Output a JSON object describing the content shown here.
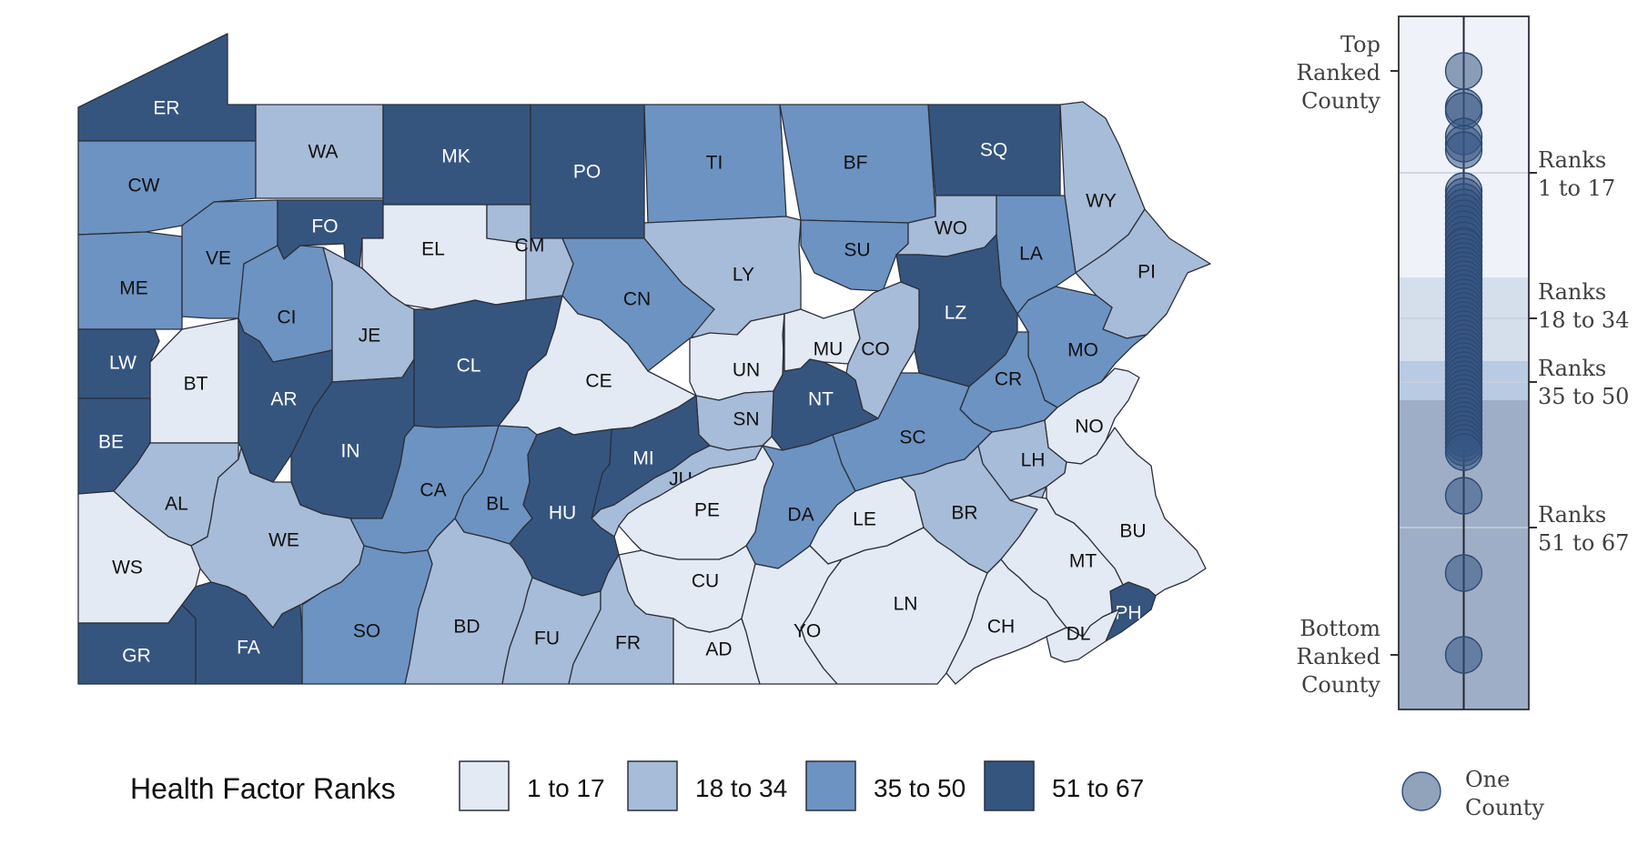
{
  "legend": {
    "title": "Health Factor Ranks",
    "bins": [
      {
        "label": "1 to 17",
        "color": "#e3eaf4"
      },
      {
        "label": "18 to 34",
        "color": "#a7bcd8"
      },
      {
        "label": "35 to 50",
        "color": "#6d93c2"
      },
      {
        "label": "51 to 67",
        "color": "#35557f"
      }
    ],
    "one_county": [
      "One",
      "County"
    ]
  },
  "side_panel": {
    "top_label": [
      "Top",
      "Ranked",
      "County"
    ],
    "bottom_label": [
      "Bottom",
      "Ranked",
      "County"
    ],
    "bands": [
      [
        "Ranks",
        "1 to 17"
      ],
      [
        "Ranks",
        "18 to 34"
      ],
      [
        "Ranks",
        "35 to 50"
      ],
      [
        "Ranks",
        "51 to 67"
      ]
    ]
  },
  "counties": [
    {
      "code": "ER",
      "bin": 3
    },
    {
      "code": "CW",
      "bin": 2
    },
    {
      "code": "WA",
      "bin": 1
    },
    {
      "code": "MK",
      "bin": 3
    },
    {
      "code": "PO",
      "bin": 3
    },
    {
      "code": "TI",
      "bin": 2
    },
    {
      "code": "BF",
      "bin": 2
    },
    {
      "code": "SQ",
      "bin": 3
    },
    {
      "code": "WY",
      "bin": 1
    },
    {
      "code": "ME",
      "bin": 2
    },
    {
      "code": "VE",
      "bin": 2
    },
    {
      "code": "FO",
      "bin": 3
    },
    {
      "code": "EL",
      "bin": 0
    },
    {
      "code": "CM",
      "bin": 1
    },
    {
      "code": "CN",
      "bin": 2
    },
    {
      "code": "LY",
      "bin": 1
    },
    {
      "code": "SU",
      "bin": 2
    },
    {
      "code": "WO",
      "bin": 1
    },
    {
      "code": "LA",
      "bin": 2
    },
    {
      "code": "PI",
      "bin": 1
    },
    {
      "code": "LW",
      "bin": 3
    },
    {
      "code": "BT",
      "bin": 0
    },
    {
      "code": "CI",
      "bin": 2
    },
    {
      "code": "JE",
      "bin": 1
    },
    {
      "code": "CL",
      "bin": 3
    },
    {
      "code": "CE",
      "bin": 0
    },
    {
      "code": "UN",
      "bin": 0
    },
    {
      "code": "MU",
      "bin": 0
    },
    {
      "code": "CO",
      "bin": 1
    },
    {
      "code": "LZ",
      "bin": 3
    },
    {
      "code": "MO",
      "bin": 2
    },
    {
      "code": "AR",
      "bin": 3
    },
    {
      "code": "NT",
      "bin": 3
    },
    {
      "code": "CR",
      "bin": 2
    },
    {
      "code": "BE",
      "bin": 3
    },
    {
      "code": "IN",
      "bin": 3
    },
    {
      "code": "SN",
      "bin": 1
    },
    {
      "code": "SC",
      "bin": 2
    },
    {
      "code": "NO",
      "bin": 0
    },
    {
      "code": "MI",
      "bin": 3
    },
    {
      "code": "LH",
      "bin": 1
    },
    {
      "code": "AL",
      "bin": 1
    },
    {
      "code": "CA",
      "bin": 2
    },
    {
      "code": "BL",
      "bin": 2
    },
    {
      "code": "JU",
      "bin": 1
    },
    {
      "code": "HU",
      "bin": 3
    },
    {
      "code": "PE",
      "bin": 0
    },
    {
      "code": "DA",
      "bin": 2
    },
    {
      "code": "LE",
      "bin": 0
    },
    {
      "code": "BR",
      "bin": 1
    },
    {
      "code": "BU",
      "bin": 0
    },
    {
      "code": "WE",
      "bin": 1
    },
    {
      "code": "WS",
      "bin": 0
    },
    {
      "code": "MT",
      "bin": 0
    },
    {
      "code": "CU",
      "bin": 0
    },
    {
      "code": "LN",
      "bin": 0
    },
    {
      "code": "PH",
      "bin": 3
    },
    {
      "code": "SO",
      "bin": 2
    },
    {
      "code": "BD",
      "bin": 1
    },
    {
      "code": "FU",
      "bin": 1
    },
    {
      "code": "FR",
      "bin": 1
    },
    {
      "code": "AD",
      "bin": 0
    },
    {
      "code": "YO",
      "bin": 0
    },
    {
      "code": "CH",
      "bin": 0
    },
    {
      "code": "DL",
      "bin": 0
    },
    {
      "code": "GR",
      "bin": 3
    },
    {
      "code": "FA",
      "bin": 3
    }
  ]
}
